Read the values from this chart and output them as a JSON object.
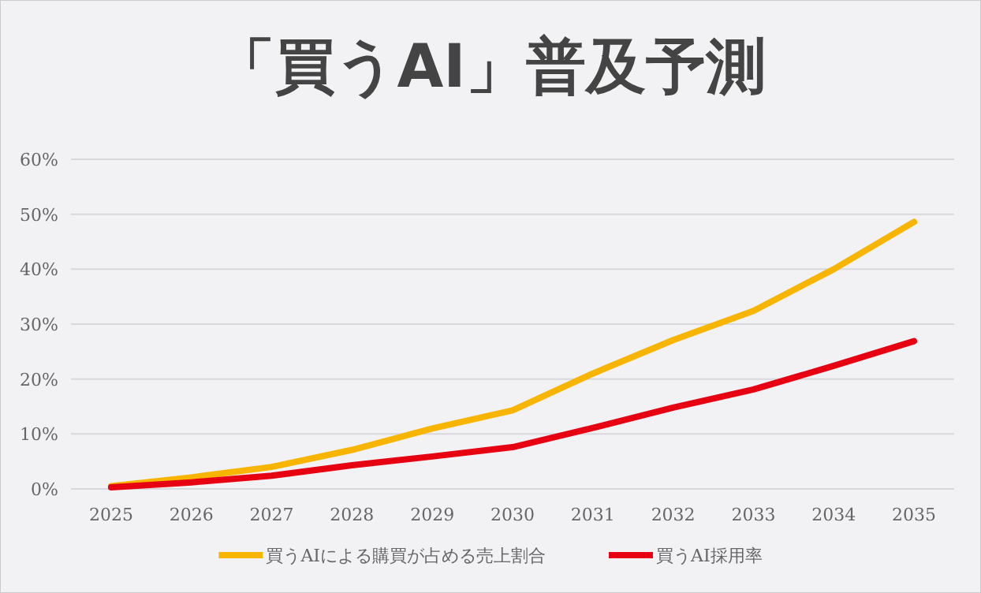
{
  "chart_data": {
    "type": "line",
    "title": "「買うAI」普及予測",
    "categories": [
      "2025",
      "2026",
      "2027",
      "2028",
      "2029",
      "2030",
      "2031",
      "2032",
      "2033",
      "2034",
      "2035"
    ],
    "series": [
      {
        "name": "買うAIによる購買が占める売上割合",
        "color": "#f7b500",
        "values": [
          0.5,
          2.1,
          4.0,
          7.1,
          11,
          14.3,
          21,
          27.1,
          32.4,
          40,
          48.6
        ]
      },
      {
        "name": "買うAI採用率",
        "color": "#e60012",
        "values": [
          0.3,
          1.2,
          2.4,
          4.3,
          5.9,
          7.6,
          11.1,
          14.8,
          18.1,
          22.4,
          26.9
        ]
      }
    ],
    "ylim": [
      0,
      60
    ],
    "yticks": [
      {
        "value": 0,
        "label": "0%"
      },
      {
        "value": 10,
        "label": "10%"
      },
      {
        "value": 20,
        "label": "20%"
      },
      {
        "value": 30,
        "label": "30%"
      },
      {
        "value": 40,
        "label": "40%"
      },
      {
        "value": 50,
        "label": "50%"
      },
      {
        "value": 60,
        "label": "60%"
      }
    ],
    "grid": "y",
    "legend": "bottom",
    "marker": "none",
    "line_style": "solid"
  }
}
